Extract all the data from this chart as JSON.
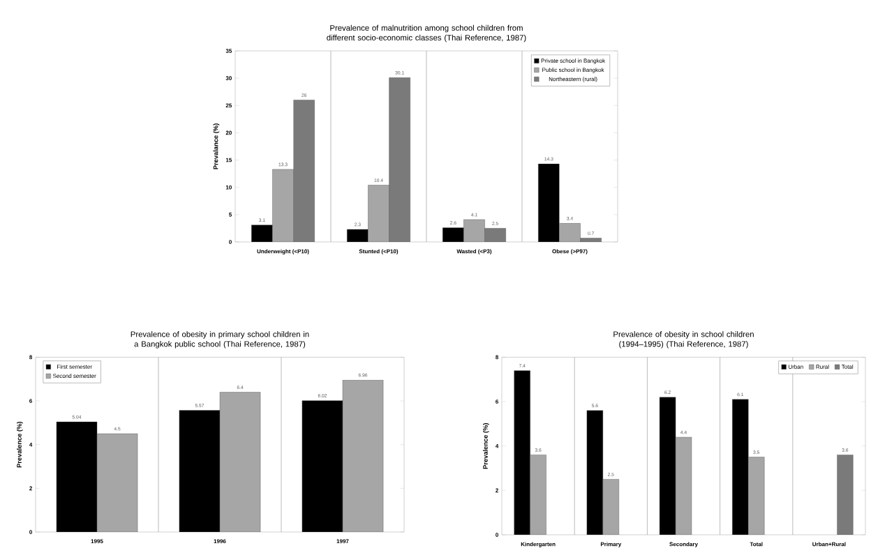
{
  "chart_data": [
    {
      "type": "bar",
      "title": "Prevalence of malnutrition among school children from different socio-economic classes (Thai Reference, 1987)",
      "ylabel": "Prevalance (%)",
      "categories": [
        "Underweight (<P10)",
        "Stunted (<P10)",
        "Wasted (<P3)",
        "Obese (>P97)"
      ],
      "series": [
        {
          "name": "Private school in Bangkok",
          "color": "#000000",
          "values": [
            3.1,
            2.3,
            2.6,
            14.3
          ]
        },
        {
          "name": "Public school in Bangkok",
          "color": "#a6a6a6",
          "values": [
            13.3,
            10.4,
            4.1,
            3.4
          ]
        },
        {
          "name": "Northeastern (rural)",
          "color": "#7a7a7a",
          "values": [
            26,
            30.1,
            2.5,
            0.7
          ]
        }
      ],
      "ylim": [
        0,
        35
      ],
      "yticks": [
        0,
        5,
        10,
        15,
        20,
        25,
        30,
        35
      ],
      "data_labels": true,
      "grid": "x",
      "legend": "top right"
    },
    {
      "type": "bar",
      "title": "Prevalence of obesity in primary school children in a Bangkok public school (Thai Reference, 1987)",
      "ylabel": "Prevalence (%)",
      "categories": [
        "1995",
        "1996",
        "1997"
      ],
      "series": [
        {
          "name": "First semester",
          "color": "#000000",
          "values": [
            5.04,
            5.57,
            6.02
          ]
        },
        {
          "name": "Second semester",
          "color": "#a6a6a6",
          "values": [
            4.5,
            6.4,
            6.96
          ]
        }
      ],
      "ylim": [
        0,
        8
      ],
      "yticks": [
        0,
        2,
        4,
        6,
        8
      ],
      "data_labels": true,
      "grid": "x",
      "legend": "top left"
    },
    {
      "type": "bar",
      "title": "Prevalence of obesity in school children (1994–1995) (Thai Reference, 1987)",
      "ylabel": "Prevalence (%)",
      "categories": [
        "Kindergarten",
        "Primary",
        "Secondary",
        "Total",
        "Urban+Rural"
      ],
      "series": [
        {
          "name": "Urban",
          "color": "#000000",
          "values": [
            7.4,
            5.6,
            6.2,
            6.1,
            null
          ]
        },
        {
          "name": "Rural",
          "color": "#a6a6a6",
          "values": [
            3.6,
            2.5,
            4.4,
            3.5,
            null
          ]
        },
        {
          "name": "Total",
          "color": "#7a7a7a",
          "values": [
            null,
            null,
            null,
            null,
            3.6
          ]
        }
      ],
      "ylim": [
        0,
        8
      ],
      "yticks": [
        0,
        2,
        4,
        6,
        8
      ],
      "data_labels": true,
      "grid": "x",
      "legend": "top right"
    }
  ]
}
